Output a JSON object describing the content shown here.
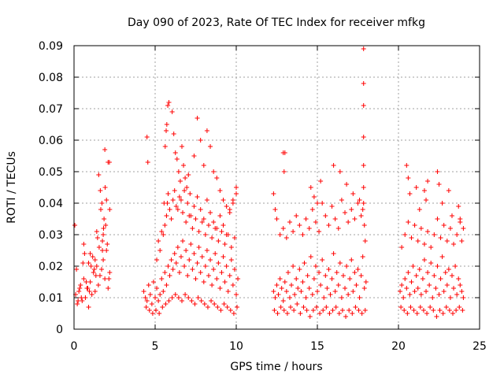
{
  "chart_data": {
    "type": "scatter",
    "title": "Day 090 of 2023, Rate Of TEC Index for receiver mfkg",
    "xlabel": "GPS time / hours",
    "ylabel": "ROTI / TECUs",
    "xlim": [
      0,
      25
    ],
    "ylim": [
      0,
      0.09
    ],
    "x_ticks": [
      "0",
      "5",
      "10",
      "15",
      "20",
      "25"
    ],
    "y_ticks": [
      "0",
      "0.01",
      "0.02",
      "0.03",
      "0.04",
      "0.05",
      "0.06",
      "0.07",
      "0.08",
      "0.09"
    ],
    "grid": true,
    "marker": "+",
    "color": "#ff0000",
    "series": [
      {
        "x": [
          0.05,
          0.1,
          0.2,
          0.3,
          0.4,
          0.5,
          0.6,
          0.7,
          0.8,
          0.9,
          1.0,
          1.1,
          1.2,
          1.3,
          1.4,
          1.5,
          1.6,
          1.7,
          1.8,
          1.9,
          2.0,
          2.1,
          2.2,
          0.15,
          0.35,
          0.55,
          0.75,
          0.95,
          1.15,
          1.35,
          1.55,
          1.75,
          1.95,
          2.15,
          0.25,
          0.65,
          1.05,
          1.45,
          1.85,
          0.45,
          0.85,
          1.25,
          1.65,
          2.05,
          1.52,
          1.62,
          1.72,
          1.82,
          1.92,
          2.1,
          2.18,
          2.2,
          1.9,
          2.0,
          1.8,
          1.75,
          0.6,
          0.9,
          1.3,
          1.0,
          1.4
        ],
        "y": [
          0.033,
          0.011,
          0.008,
          0.012,
          0.014,
          0.009,
          0.016,
          0.01,
          0.013,
          0.007,
          0.015,
          0.011,
          0.018,
          0.012,
          0.02,
          0.014,
          0.017,
          0.019,
          0.022,
          0.016,
          0.025,
          0.013,
          0.018,
          0.019,
          0.013,
          0.021,
          0.015,
          0.012,
          0.023,
          0.017,
          0.026,
          0.028,
          0.033,
          0.016,
          0.009,
          0.024,
          0.02,
          0.029,
          0.035,
          0.01,
          0.013,
          0.019,
          0.038,
          0.027,
          0.049,
          0.044,
          0.04,
          0.032,
          0.045,
          0.053,
          0.053,
          0.038,
          0.057,
          0.041,
          0.03,
          0.025,
          0.027,
          0.021,
          0.022,
          0.024,
          0.031
        ]
      },
      {
        "x": [
          4.3,
          4.4,
          4.5,
          4.6,
          4.7,
          4.8,
          4.9,
          5.0,
          5.1,
          5.2,
          5.3,
          5.4,
          5.5,
          5.6,
          5.7,
          5.8,
          5.9,
          6.0,
          6.1,
          6.2,
          6.3,
          6.4,
          6.5,
          6.6,
          6.7,
          6.8,
          6.9,
          7.0,
          7.1,
          7.2,
          7.3,
          7.4,
          7.5,
          7.6,
          7.7,
          7.8,
          7.9,
          8.0,
          8.1,
          8.2,
          8.3,
          8.4,
          8.5,
          8.6,
          8.7,
          8.8,
          8.9,
          9.0,
          9.1,
          9.2,
          9.3,
          9.4,
          9.5,
          9.6,
          9.7,
          9.8,
          9.9,
          10.0,
          10.1,
          4.45,
          4.65,
          4.85,
          5.05,
          5.25,
          5.45,
          5.65,
          5.85,
          6.05,
          6.25,
          6.45,
          6.65,
          6.85,
          7.05,
          7.25,
          7.45,
          7.65,
          7.85,
          8.05,
          8.25,
          8.45,
          8.65,
          8.85,
          9.05,
          9.25,
          9.45,
          9.65,
          9.85,
          10.05,
          5.5,
          5.6,
          5.7,
          5.75,
          5.8,
          5.9,
          6.0,
          6.1,
          6.2,
          6.3,
          6.5,
          6.7,
          6.9,
          7.1,
          7.3,
          7.5,
          7.7,
          7.9,
          8.1,
          8.3,
          8.5,
          8.7,
          8.9,
          9.1,
          9.3,
          9.5,
          9.7,
          9.9,
          4.5,
          4.55,
          5.55,
          5.62,
          5.68,
          5.72,
          5.78,
          5.85,
          6.05,
          6.15,
          6.25,
          6.35,
          6.45,
          6.55,
          6.65,
          6.75,
          6.85,
          6.95,
          7.05,
          7.15,
          7.4,
          7.6,
          7.8,
          8.0,
          8.2,
          8.4,
          8.6,
          8.8,
          9.0,
          9.2,
          9.4,
          9.6,
          9.8,
          10.0,
          5.1,
          5.2,
          5.3,
          5.4,
          6.4,
          6.6,
          6.8,
          7.0,
          7.2,
          7.4,
          7.6,
          7.8,
          8.0,
          8.2,
          8.4,
          8.6,
          8.8,
          9.0,
          9.2,
          9.4,
          9.6,
          9.8,
          10.0
        ],
        "y": [
          0.012,
          0.01,
          0.009,
          0.014,
          0.011,
          0.008,
          0.015,
          0.01,
          0.013,
          0.009,
          0.011,
          0.016,
          0.012,
          0.018,
          0.014,
          0.02,
          0.017,
          0.022,
          0.019,
          0.024,
          0.021,
          0.026,
          0.018,
          0.023,
          0.028,
          0.02,
          0.025,
          0.017,
          0.022,
          0.027,
          0.019,
          0.024,
          0.016,
          0.021,
          0.026,
          0.018,
          0.023,
          0.015,
          0.02,
          0.025,
          0.017,
          0.022,
          0.014,
          0.019,
          0.024,
          0.016,
          0.021,
          0.013,
          0.018,
          0.023,
          0.015,
          0.02,
          0.012,
          0.017,
          0.022,
          0.014,
          0.019,
          0.011,
          0.016,
          0.007,
          0.006,
          0.005,
          0.006,
          0.005,
          0.007,
          0.008,
          0.009,
          0.01,
          0.011,
          0.01,
          0.009,
          0.011,
          0.01,
          0.009,
          0.008,
          0.01,
          0.009,
          0.008,
          0.007,
          0.009,
          0.008,
          0.007,
          0.006,
          0.008,
          0.007,
          0.006,
          0.005,
          0.007,
          0.03,
          0.033,
          0.036,
          0.04,
          0.043,
          0.038,
          0.035,
          0.041,
          0.044,
          0.039,
          0.042,
          0.037,
          0.034,
          0.036,
          0.032,
          0.035,
          0.031,
          0.034,
          0.03,
          0.033,
          0.029,
          0.032,
          0.028,
          0.031,
          0.027,
          0.03,
          0.026,
          0.029,
          0.061,
          0.053,
          0.04,
          0.058,
          0.063,
          0.065,
          0.071,
          0.072,
          0.069,
          0.062,
          0.056,
          0.054,
          0.05,
          0.047,
          0.058,
          0.052,
          0.048,
          0.045,
          0.049,
          0.043,
          0.055,
          0.067,
          0.06,
          0.052,
          0.063,
          0.058,
          0.05,
          0.048,
          0.044,
          0.041,
          0.039,
          0.037,
          0.041,
          0.045,
          0.022,
          0.028,
          0.025,
          0.031,
          0.038,
          0.041,
          0.044,
          0.04,
          0.036,
          0.039,
          0.042,
          0.038,
          0.035,
          0.041,
          0.037,
          0.034,
          0.032,
          0.036,
          0.033,
          0.03,
          0.038,
          0.04,
          0.043
        ]
      },
      {
        "x": [
          12.3,
          12.4,
          12.5,
          12.6,
          12.7,
          12.8,
          12.9,
          13.0,
          13.1,
          13.2,
          13.3,
          13.4,
          13.5,
          13.6,
          13.7,
          13.8,
          13.9,
          14.0,
          14.1,
          14.2,
          14.3,
          14.4,
          14.5,
          14.6,
          14.7,
          14.8,
          14.9,
          15.0,
          15.1,
          15.2,
          15.3,
          15.4,
          15.5,
          15.6,
          15.7,
          15.8,
          15.9,
          16.0,
          16.1,
          16.2,
          16.3,
          16.4,
          16.5,
          16.6,
          16.7,
          16.8,
          16.9,
          17.0,
          17.1,
          17.2,
          17.3,
          17.4,
          17.5,
          17.6,
          17.7,
          17.8,
          17.9,
          18.0,
          12.35,
          12.55,
          12.75,
          12.95,
          13.15,
          13.35,
          13.55,
          13.75,
          13.95,
          14.15,
          14.35,
          14.55,
          14.75,
          14.95,
          15.15,
          15.35,
          15.55,
          15.75,
          15.95,
          16.15,
          16.35,
          16.55,
          16.75,
          16.95,
          17.15,
          17.35,
          17.55,
          17.75,
          17.95,
          12.3,
          12.4,
          12.5,
          12.7,
          12.9,
          13.1,
          13.3,
          13.5,
          13.7,
          13.9,
          14.1,
          14.3,
          14.5,
          14.7,
          14.9,
          15.1,
          15.3,
          15.5,
          15.7,
          15.9,
          16.1,
          16.3,
          16.5,
          16.7,
          16.9,
          17.1,
          17.3,
          17.5,
          17.7,
          12.9,
          12.95,
          13.0,
          14.6,
          14.8,
          15.0,
          15.2,
          16.0,
          16.4,
          16.8,
          17.2,
          17.6,
          17.85,
          17.85,
          17.85,
          17.85,
          17.85,
          17.85,
          17.85,
          17.8,
          17.9,
          17.95
        ],
        "y": [
          0.012,
          0.01,
          0.014,
          0.011,
          0.016,
          0.013,
          0.009,
          0.015,
          0.012,
          0.018,
          0.01,
          0.014,
          0.02,
          0.011,
          0.016,
          0.013,
          0.019,
          0.012,
          0.015,
          0.021,
          0.01,
          0.017,
          0.013,
          0.023,
          0.011,
          0.016,
          0.02,
          0.012,
          0.018,
          0.014,
          0.022,
          0.01,
          0.017,
          0.013,
          0.019,
          0.011,
          0.016,
          0.024,
          0.012,
          0.018,
          0.014,
          0.021,
          0.01,
          0.017,
          0.013,
          0.02,
          0.011,
          0.016,
          0.022,
          0.012,
          0.018,
          0.014,
          0.019,
          0.01,
          0.017,
          0.023,
          0.013,
          0.015,
          0.006,
          0.005,
          0.007,
          0.006,
          0.005,
          0.007,
          0.006,
          0.008,
          0.005,
          0.007,
          0.006,
          0.004,
          0.006,
          0.007,
          0.005,
          0.006,
          0.007,
          0.005,
          0.006,
          0.007,
          0.005,
          0.006,
          0.004,
          0.006,
          0.005,
          0.007,
          0.006,
          0.005,
          0.006,
          0.043,
          0.038,
          0.035,
          0.03,
          0.032,
          0.029,
          0.034,
          0.031,
          0.036,
          0.033,
          0.03,
          0.035,
          0.032,
          0.038,
          0.034,
          0.031,
          0.04,
          0.036,
          0.033,
          0.039,
          0.035,
          0.032,
          0.041,
          0.037,
          0.034,
          0.038,
          0.035,
          0.04,
          0.036,
          0.056,
          0.05,
          0.056,
          0.045,
          0.042,
          0.04,
          0.047,
          0.052,
          0.05,
          0.046,
          0.043,
          0.041,
          0.089,
          0.078,
          0.071,
          0.061,
          0.052,
          0.045,
          0.04,
          0.038,
          0.033,
          0.028
        ]
      },
      {
        "x": [
          20.1,
          20.2,
          20.3,
          20.4,
          20.5,
          20.6,
          20.7,
          20.8,
          20.9,
          21.0,
          21.1,
          21.2,
          21.3,
          21.4,
          21.5,
          21.6,
          21.7,
          21.8,
          21.9,
          22.0,
          22.1,
          22.2,
          22.3,
          22.4,
          22.5,
          22.6,
          22.7,
          22.8,
          22.9,
          23.0,
          23.1,
          23.2,
          23.3,
          23.4,
          23.5,
          23.6,
          23.7,
          23.8,
          23.9,
          24.0,
          20.15,
          20.35,
          20.55,
          20.75,
          20.95,
          21.15,
          21.35,
          21.55,
          21.75,
          21.95,
          22.15,
          22.35,
          22.55,
          22.75,
          22.95,
          23.15,
          23.35,
          23.55,
          23.75,
          23.95,
          20.2,
          20.4,
          20.6,
          20.8,
          21.0,
          21.2,
          21.4,
          21.6,
          21.8,
          22.0,
          22.2,
          22.4,
          22.6,
          22.8,
          23.0,
          23.2,
          23.4,
          23.6,
          23.8,
          24.0,
          20.5,
          20.6,
          20.7,
          21.1,
          21.3,
          21.6,
          21.7,
          21.8,
          22.4,
          22.5,
          22.7,
          23.1,
          23.3,
          23.7,
          23.8,
          23.9
        ],
        "y": [
          0.012,
          0.014,
          0.01,
          0.016,
          0.013,
          0.018,
          0.011,
          0.015,
          0.02,
          0.012,
          0.017,
          0.013,
          0.019,
          0.011,
          0.016,
          0.022,
          0.012,
          0.018,
          0.014,
          0.021,
          0.01,
          0.017,
          0.013,
          0.02,
          0.011,
          0.016,
          0.023,
          0.012,
          0.018,
          0.014,
          0.019,
          0.01,
          0.017,
          0.013,
          0.02,
          0.011,
          0.016,
          0.014,
          0.012,
          0.01,
          0.007,
          0.006,
          0.005,
          0.007,
          0.006,
          0.005,
          0.007,
          0.006,
          0.005,
          0.007,
          0.006,
          0.004,
          0.006,
          0.005,
          0.007,
          0.006,
          0.005,
          0.006,
          0.007,
          0.006,
          0.026,
          0.03,
          0.034,
          0.029,
          0.033,
          0.028,
          0.032,
          0.027,
          0.031,
          0.026,
          0.03,
          0.035,
          0.029,
          0.033,
          0.028,
          0.032,
          0.027,
          0.03,
          0.034,
          0.032,
          0.052,
          0.048,
          0.043,
          0.045,
          0.038,
          0.044,
          0.041,
          0.047,
          0.05,
          0.046,
          0.04,
          0.044,
          0.036,
          0.039,
          0.035,
          0.028
        ]
      }
    ]
  }
}
